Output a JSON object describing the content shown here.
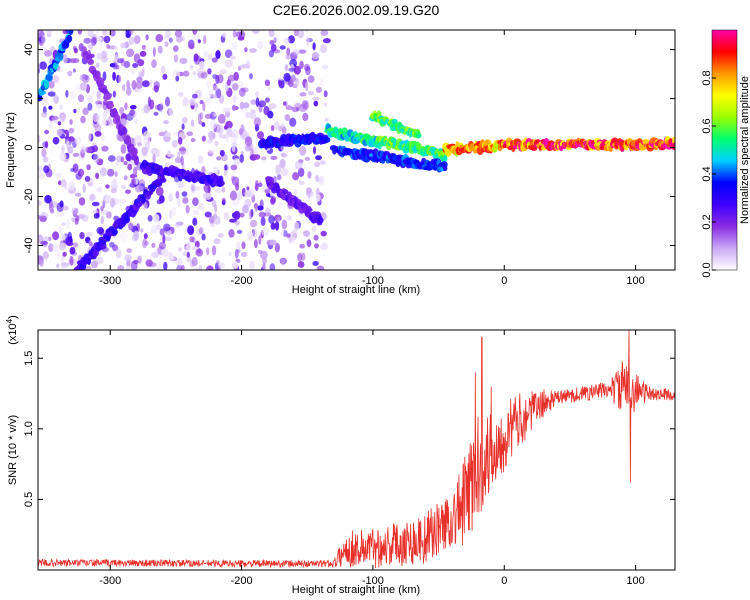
{
  "title": "C2E6.2026.002.09.19.G20",
  "chart_data": [
    {
      "type": "heatmap",
      "name": "spectrogram",
      "xlabel": "Height of straight line (km)",
      "ylabel": "Frequency (Hz)",
      "xlim": [
        -355,
        130
      ],
      "ylim": [
        -50,
        48
      ],
      "xticks": [
        -300,
        -200,
        -100,
        0,
        100
      ],
      "xtick_labels": [
        "-300",
        "-200",
        "-100",
        "0",
        "100"
      ],
      "yticks": [
        -40,
        -20,
        0,
        20,
        40
      ],
      "ytick_labels": [
        "-40",
        "-20",
        "0",
        "20",
        "40"
      ],
      "colorbar": {
        "label": "Normalized spectral amplitude",
        "range": [
          0,
          1
        ],
        "ticks": [
          0.0,
          0.2,
          0.4,
          0.6,
          0.8
        ],
        "tick_labels": [
          "0.0",
          "0.2",
          "0.4",
          "0.6",
          "0.8"
        ],
        "colors": [
          "#ffffff",
          "#c9a8f5",
          "#8a2be2",
          "#3d00ff",
          "#0000ff",
          "#00d0ff",
          "#00ff70",
          "#9aff00",
          "#ffff00",
          "#ff9900",
          "#ff0000",
          "#ff00aa"
        ]
      },
      "noise_region_x": [
        -355,
        -135
      ],
      "features": [
        {
          "desc": "rising diagonal streak",
          "x": [
            -355,
            -330
          ],
          "y": [
            20,
            47
          ],
          "amp": 0.45
        },
        {
          "desc": "rising diagonal streak",
          "x": [
            -325,
            -260
          ],
          "y": [
            -50,
            -12
          ],
          "amp": 0.3
        },
        {
          "desc": "descending streak",
          "x": [
            -275,
            -215
          ],
          "y": [
            -8,
            -14
          ],
          "amp": 0.3
        },
        {
          "desc": "descending streak",
          "x": [
            -180,
            -140
          ],
          "y": [
            -14,
            -30
          ],
          "amp": 0.25
        },
        {
          "desc": "diagonal streak",
          "x": [
            -320,
            -280
          ],
          "y": [
            40,
            -5
          ],
          "amp": 0.2
        },
        {
          "desc": "main band",
          "x": [
            -185,
            -135
          ],
          "y": [
            2,
            4
          ],
          "amp": 0.35
        },
        {
          "desc": "main band",
          "x": [
            -135,
            -95
          ],
          "y": [
            7,
            2
          ],
          "amp": 0.55
        },
        {
          "desc": "main band",
          "x": [
            -95,
            -45
          ],
          "y": [
            3,
            -3
          ],
          "amp": 0.6
        },
        {
          "desc": "main band",
          "x": [
            -45,
            0
          ],
          "y": [
            -1,
            1
          ],
          "amp": 0.85
        },
        {
          "desc": "main band",
          "x": [
            0,
            130
          ],
          "y": [
            1,
            1.5
          ],
          "amp": 0.95
        },
        {
          "desc": "upper lobe",
          "x": [
            -100,
            -65
          ],
          "y": [
            13,
            5
          ],
          "amp": 0.6
        },
        {
          "desc": "lower lobe",
          "x": [
            -130,
            -45
          ],
          "y": [
            -1,
            -8
          ],
          "amp": 0.4
        }
      ]
    },
    {
      "type": "line",
      "name": "snr",
      "color": "#e8302a",
      "xlabel": "Height of straight line (km)",
      "ylabel": "SNR (10 * v/v)",
      "y_multiplier_label": "(x10",
      "y_multiplier_exp": "4",
      "y_multiplier_close": ")",
      "xlim": [
        -355,
        130
      ],
      "ylim": [
        0,
        17000
      ],
      "xticks": [
        -300,
        -200,
        -100,
        0,
        100
      ],
      "xtick_labels": [
        "-300",
        "-200",
        "-100",
        "0",
        "100"
      ],
      "yticks": [
        5000,
        10000,
        15000
      ],
      "ytick_labels": [
        "0.5",
        "1.0",
        "1.5"
      ],
      "envelope_x": [
        -355,
        -300,
        -200,
        -130,
        -120,
        -100,
        -80,
        -60,
        -50,
        -40,
        -30,
        -25,
        -20,
        -10,
        0,
        10,
        20,
        30,
        40,
        60,
        80,
        90,
        100,
        110,
        130
      ],
      "envelope_y": [
        500,
        500,
        450,
        450,
        1500,
        1600,
        1900,
        2200,
        3000,
        3600,
        4800,
        6000,
        7200,
        8300,
        9500,
        10500,
        11200,
        11800,
        12200,
        12500,
        12800,
        12900,
        12700,
        12500,
        12400
      ],
      "noise_amplitude": [
        [
          -355,
          250
        ],
        [
          -130,
          250
        ],
        [
          -120,
          1300
        ],
        [
          -40,
          2000
        ],
        [
          -25,
          4000
        ],
        [
          -10,
          3000
        ],
        [
          20,
          1500
        ],
        [
          40,
          500
        ],
        [
          80,
          600
        ],
        [
          90,
          2000
        ],
        [
          100,
          1500
        ],
        [
          110,
          500
        ],
        [
          130,
          400
        ]
      ],
      "spikes": [
        {
          "x": -17,
          "y": 16500
        },
        {
          "x": -22,
          "y": 14000
        },
        {
          "x": 95,
          "y": 17000
        },
        {
          "x": 96,
          "y": 6200
        },
        {
          "x": -10,
          "y": 13000
        }
      ]
    }
  ]
}
